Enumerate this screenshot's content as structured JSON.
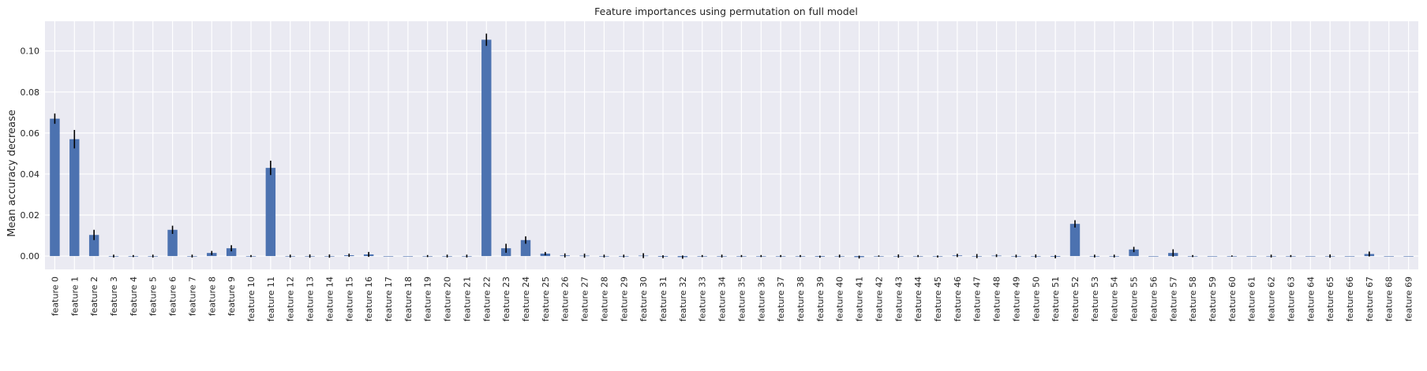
{
  "chart_data": {
    "type": "bar",
    "title": "Feature importances using permutation on full model",
    "xlabel": "",
    "ylabel": "Mean accuracy decrease",
    "ylim": [
      -0.0065,
      0.1145
    ],
    "yticks": [
      "0.00",
      "0.02",
      "0.04",
      "0.06",
      "0.08",
      "0.10"
    ],
    "grid": true,
    "legend": "none",
    "bar_color": "#4c72b0",
    "error_color": "#000000",
    "plot_background": "#eaeaf2",
    "categories": [
      "feature 0",
      "feature 1",
      "feature 2",
      "feature 3",
      "feature 4",
      "feature 5",
      "feature 6",
      "feature 7",
      "feature 8",
      "feature 9",
      "feature 10",
      "feature 11",
      "feature 12",
      "feature 13",
      "feature 14",
      "feature 15",
      "feature 16",
      "feature 17",
      "feature 18",
      "feature 19",
      "feature 20",
      "feature 21",
      "feature 22",
      "feature 23",
      "feature 24",
      "feature 25",
      "feature 26",
      "feature 27",
      "feature 28",
      "feature 29",
      "feature 30",
      "feature 31",
      "feature 32",
      "feature 33",
      "feature 34",
      "feature 35",
      "feature 36",
      "feature 37",
      "feature 38",
      "feature 39",
      "feature 40",
      "feature 41",
      "feature 42",
      "feature 43",
      "feature 44",
      "feature 45",
      "feature 46",
      "feature 47",
      "feature 48",
      "feature 49",
      "feature 50",
      "feature 51",
      "feature 52",
      "feature 53",
      "feature 54",
      "feature 55",
      "feature 56",
      "feature 57",
      "feature 58",
      "feature 59",
      "feature 60",
      "feature 61",
      "feature 62",
      "feature 63",
      "feature 64",
      "feature 65",
      "feature 66",
      "feature 67",
      "feature 68",
      "feature 69"
    ],
    "values": [
      0.067,
      0.057,
      0.0103,
      0.0,
      0.0,
      0.0,
      0.0128,
      0.0,
      0.0015,
      0.0038,
      0.0,
      0.043,
      0.0,
      0.0,
      0.0,
      0.0004,
      0.0008,
      0.0,
      0.0,
      0.0,
      0.0,
      0.0,
      0.1055,
      0.0038,
      0.0078,
      0.0012,
      0.0003,
      0.0002,
      0.0,
      0.0,
      0.0002,
      -0.0003,
      -0.0005,
      0.0,
      0.0,
      0.0,
      0.0,
      0.0,
      0.0,
      -0.0003,
      0.0,
      -0.0005,
      0.0,
      0.0,
      0.0,
      -0.0002,
      0.0003,
      0.0,
      0.0002,
      0.0,
      0.0,
      -0.0003,
      0.0157,
      0.0,
      0.0,
      0.0032,
      0.0,
      0.0015,
      0.0,
      0.0,
      0.0,
      0.0,
      0.0,
      0.0,
      0.0,
      0.0,
      0.0,
      0.001,
      0.0,
      0.0
    ],
    "errors": [
      0.0025,
      0.0045,
      0.0025,
      0.0007,
      0.0005,
      0.0007,
      0.002,
      0.0007,
      0.001,
      0.0015,
      0.0005,
      0.0035,
      0.0007,
      0.0008,
      0.0008,
      0.0008,
      0.0012,
      0.0,
      0.0,
      0.0005,
      0.0007,
      0.0007,
      0.003,
      0.0022,
      0.0018,
      0.0008,
      0.001,
      0.001,
      0.0007,
      0.0007,
      0.0012,
      0.0007,
      0.0008,
      0.0005,
      0.0007,
      0.0005,
      0.0005,
      0.0005,
      0.0005,
      0.0005,
      0.0007,
      0.0007,
      0.0003,
      0.0008,
      0.0005,
      0.0005,
      0.0008,
      0.001,
      0.0007,
      0.0007,
      0.0008,
      0.0008,
      0.0018,
      0.0007,
      0.0007,
      0.0013,
      0.0,
      0.0018,
      0.0005,
      0.0,
      0.0003,
      0.0,
      0.0007,
      0.0005,
      0.0,
      0.0008,
      0.0,
      0.0012,
      0.0,
      0.0
    ]
  }
}
